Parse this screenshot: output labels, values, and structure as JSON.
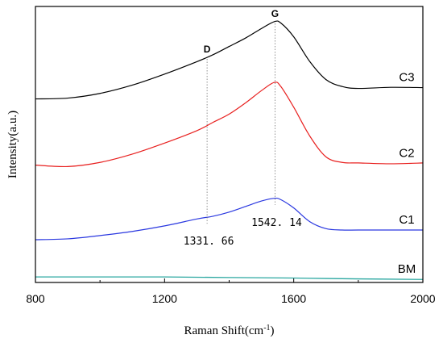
{
  "chart_data": {
    "type": "line",
    "xlabel": "Raman Shift(cm",
    "xlabel_sup": "-1",
    "xlabel_close": ")",
    "ylabel": "Intensity(a.u.)",
    "xlim": [
      800,
      2000
    ],
    "ylim": [
      0,
      100
    ],
    "x_ticks": [
      "800",
      "1200",
      "1600",
      "2000"
    ],
    "grid": false,
    "y_tick_labels": false,
    "peaks": [
      {
        "letter": "D",
        "x": 1331.66,
        "value_label": "1331. 66",
        "top_series": "C3",
        "bottom_series": "C1"
      },
      {
        "letter": "G",
        "x": 1542.14,
        "value_label": "1542. 14",
        "top_series": "C3",
        "bottom_series": "C1"
      }
    ],
    "series": [
      {
        "name": "C3",
        "color": "#000000",
        "x": [
          800,
          900,
          1000,
          1100,
          1200,
          1300,
          1350,
          1400,
          1450,
          1500,
          1540,
          1560,
          1600,
          1650,
          1700,
          1750,
          1800,
          1900,
          2000
        ],
        "y": [
          66.5,
          66.8,
          68.5,
          71.5,
          75.5,
          80.0,
          82.5,
          85.5,
          88.5,
          92.0,
          94.5,
          94.0,
          89.0,
          80.0,
          73.5,
          71.0,
          70.3,
          70.7,
          70.6
        ]
      },
      {
        "name": "C2",
        "color": "#e8201f",
        "x": [
          800,
          900,
          1000,
          1100,
          1200,
          1300,
          1350,
          1400,
          1450,
          1500,
          1540,
          1560,
          1600,
          1650,
          1700,
          1750,
          1800,
          1900,
          2000
        ],
        "y": [
          42.5,
          42.0,
          43.5,
          46.5,
          50.5,
          55.0,
          58.0,
          61.0,
          65.0,
          69.5,
          72.5,
          71.0,
          63.5,
          53.0,
          45.5,
          43.5,
          43.3,
          43.0,
          43.3
        ]
      },
      {
        "name": "C1",
        "color": "#2a38e0",
        "x": [
          800,
          900,
          1000,
          1100,
          1200,
          1300,
          1350,
          1400,
          1450,
          1500,
          1540,
          1560,
          1600,
          1650,
          1700,
          1750,
          1800,
          1900,
          2000
        ],
        "y": [
          15.5,
          15.8,
          17.0,
          18.5,
          20.5,
          23.0,
          24.0,
          25.5,
          27.5,
          29.5,
          30.5,
          30.0,
          27.0,
          22.0,
          19.5,
          19.0,
          19.0,
          19.0,
          19.0
        ]
      },
      {
        "name": "BM",
        "color": "#2aa7a0",
        "x": [
          800,
          1000,
          1200,
          1400,
          1600,
          1800,
          2000
        ],
        "y": [
          2.0,
          2.0,
          2.0,
          1.8,
          1.6,
          1.3,
          1.1
        ]
      }
    ]
  }
}
